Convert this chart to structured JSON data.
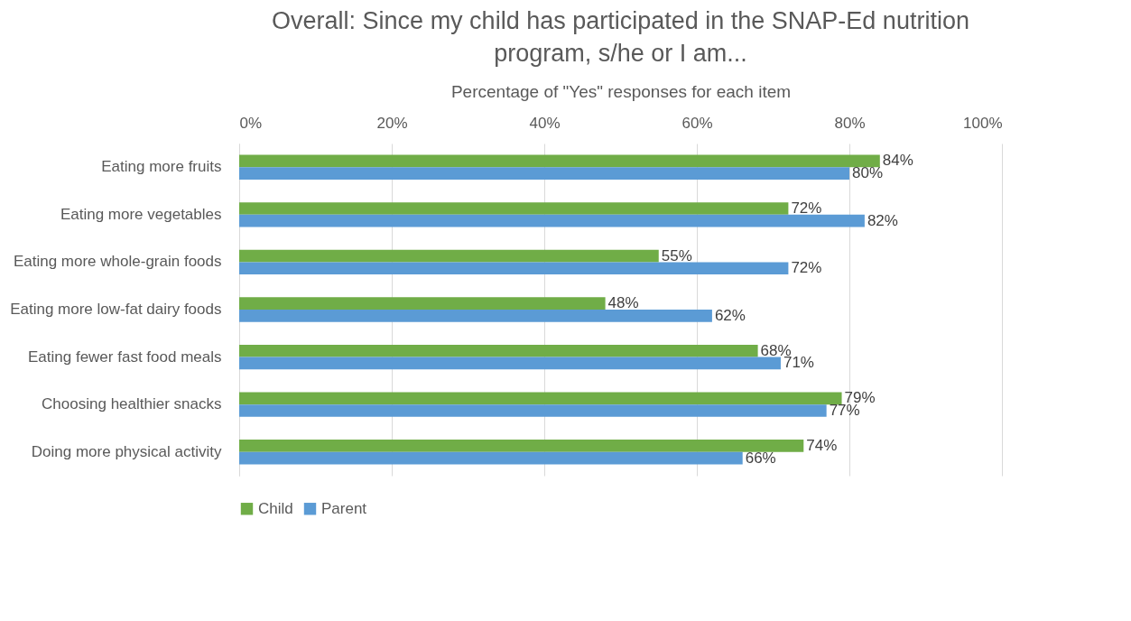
{
  "chart_data": {
    "type": "bar",
    "orientation": "horizontal",
    "title": "Overall: Since my child has participated in the SNAP-Ed nutrition program, s/he or I am...",
    "xlabel": "Percentage of \"Yes\" responses for each item",
    "categories": [
      "Eating more fruits",
      "Eating more vegetables",
      "Eating more whole-grain foods",
      "Eating more low-fat dairy foods",
      "Eating fewer fast food meals",
      "Choosing healthier snacks",
      "Doing more physical activity"
    ],
    "series": [
      {
        "name": "Child",
        "color": "#70ad47",
        "values": [
          84,
          72,
          55,
          48,
          68,
          79,
          74
        ],
        "value_labels": [
          "84%",
          "72%",
          "55%",
          "48%",
          "68%",
          "79%",
          "74%"
        ]
      },
      {
        "name": "Parent",
        "color": "#5b9bd5",
        "values": [
          80,
          82,
          72,
          62,
          71,
          77,
          66
        ],
        "value_labels": [
          "80%",
          "82%",
          "72%",
          "62%",
          "71%",
          "77%",
          "66%"
        ]
      }
    ],
    "xlim": [
      0,
      100
    ],
    "xticks": [
      {
        "value": 0,
        "label": "0%"
      },
      {
        "value": 20,
        "label": "20%"
      },
      {
        "value": 40,
        "label": "40%"
      },
      {
        "value": 60,
        "label": "60%"
      },
      {
        "value": 80,
        "label": "80%"
      },
      {
        "value": 100,
        "label": "100%"
      }
    ],
    "grid": "x",
    "legend": "bottom"
  }
}
